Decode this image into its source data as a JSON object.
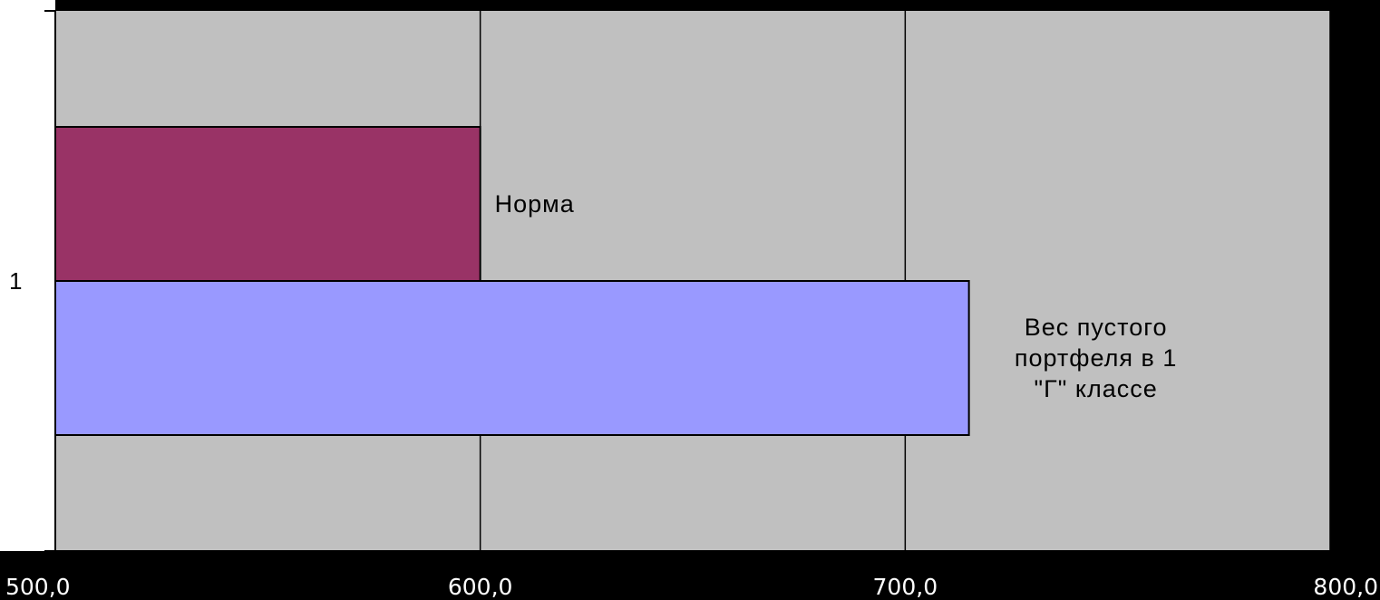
{
  "chart_data": {
    "type": "bar",
    "orientation": "horizontal",
    "categories": [
      "1"
    ],
    "series": [
      {
        "name": "Норма",
        "label_lines": [
          "Норма"
        ],
        "values": [
          600.0
        ],
        "color": "#993366"
      },
      {
        "name": "Вес пустого портфеля в 1 \"Г\" классе",
        "label_lines": [
          "Вес пустого",
          "портфеля в 1",
          "\"Г\" классе"
        ],
        "values": [
          715.0
        ],
        "color": "#9999ff"
      }
    ],
    "xlim": [
      500,
      800
    ],
    "x_ticks": [
      "500,0",
      "600,0",
      "700,0",
      "800,0"
    ],
    "grid": true,
    "plot_background": "#c0c0c0",
    "page_background": "#000000",
    "legend": "none",
    "title": "",
    "xlabel": "",
    "ylabel": ""
  }
}
